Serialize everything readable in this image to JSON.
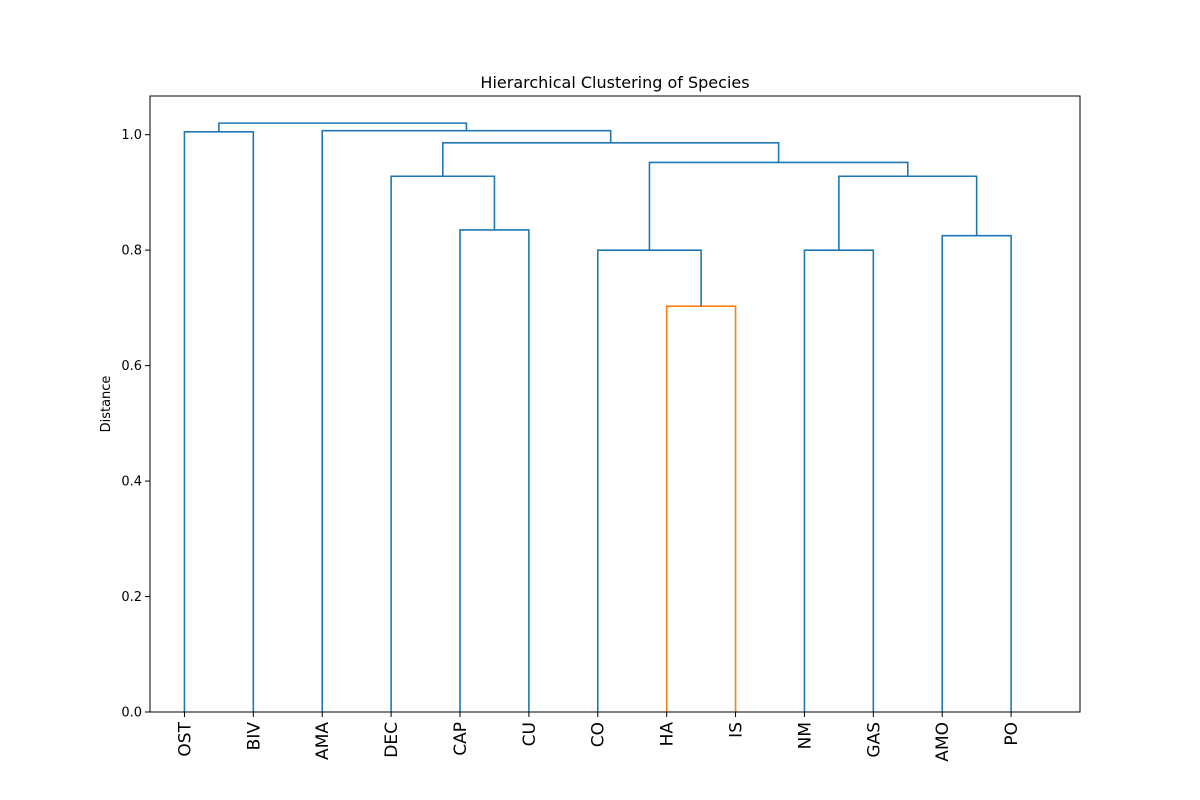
{
  "chart_data": {
    "type": "dendrogram",
    "title": "Hierarchical Clustering of Species",
    "xlabel": "",
    "ylabel": "Distance",
    "ylim": [
      0.0,
      1.067
    ],
    "yticks": [
      "0.0",
      "0.2",
      "0.4",
      "0.6",
      "0.8",
      "1.0"
    ],
    "grid": false,
    "leaves": [
      "OST",
      "BIV",
      "AMA",
      "DEC",
      "CAP",
      "CU",
      "CO",
      "HA",
      "IS",
      "NM",
      "GAS",
      "AMO",
      "PO"
    ],
    "colors": {
      "above_threshold": "#1f77b4",
      "cluster": "#ff7f0e"
    },
    "links": [
      {
        "left": "HA",
        "right": "IS",
        "distance": 0.703,
        "color": "#ff7f0e"
      },
      {
        "left": "CO",
        "right": "C1",
        "distance": 0.8,
        "color": "#1f77b4",
        "id": "C2"
      },
      {
        "left": "NM",
        "right": "GAS",
        "distance": 0.8,
        "color": "#1f77b4",
        "id": "C3"
      },
      {
        "left": "AMO",
        "right": "PO",
        "distance": 0.825,
        "color": "#1f77b4",
        "id": "C4"
      },
      {
        "left": "CAP",
        "right": "CU",
        "distance": 0.835,
        "color": "#1f77b4",
        "id": "C5"
      },
      {
        "left": "DEC",
        "right": "C5",
        "distance": 0.928,
        "color": "#1f77b4",
        "id": "C6"
      },
      {
        "left": "C3",
        "right": "C4",
        "distance": 0.928,
        "color": "#1f77b4",
        "id": "C7"
      },
      {
        "left": "C2",
        "right": "C7",
        "distance": 0.952,
        "color": "#1f77b4",
        "id": "C8"
      },
      {
        "left": "C6",
        "right": "C8",
        "distance": 0.986,
        "color": "#1f77b4",
        "id": "C9"
      },
      {
        "left": "OST",
        "right": "BIV",
        "distance": 1.005,
        "color": "#1f77b4",
        "id": "C10"
      },
      {
        "left": "AMA",
        "right": "C9",
        "distance": 1.007,
        "color": "#1f77b4",
        "id": "C11"
      },
      {
        "left": "C10",
        "right": "C11",
        "distance": 1.02,
        "color": "#1f77b4",
        "id": "C12"
      }
    ]
  }
}
